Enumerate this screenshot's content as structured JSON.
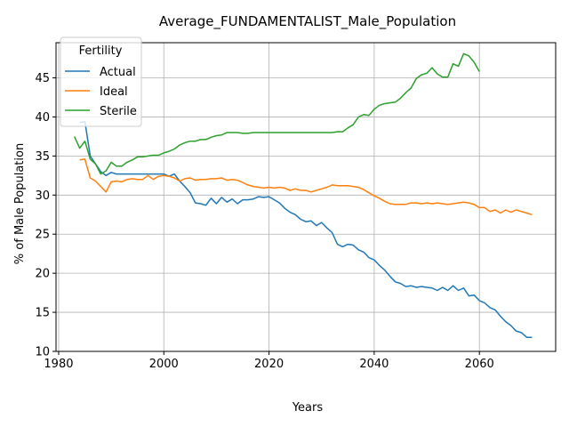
{
  "chart_data": {
    "type": "line",
    "title": "Average_FUNDAMENTALIST_Male_Population",
    "xlabel": "Years",
    "ylabel": "% of Male Population",
    "xlim": [
      1979.5,
      2074.5
    ],
    "ylim": [
      10,
      49.5
    ],
    "xticks": [
      1980,
      2000,
      2020,
      2040,
      2060
    ],
    "yticks": [
      10,
      15,
      20,
      25,
      30,
      35,
      40,
      45
    ],
    "grid": true,
    "legend": {
      "title": "Fertility",
      "position": "top-left"
    },
    "series": [
      {
        "name": "Actual",
        "color": "#1f77b4",
        "x": [
          1984,
          1985,
          1986,
          1987,
          1988,
          1989,
          1990,
          1991,
          1992,
          1993,
          1994,
          1995,
          1996,
          1997,
          1998,
          1999,
          2000,
          2001,
          2002,
          2003,
          2004,
          2005,
          2006,
          2007,
          2008,
          2009,
          2010,
          2011,
          2012,
          2013,
          2014,
          2015,
          2016,
          2017,
          2018,
          2019,
          2020,
          2021,
          2022,
          2023,
          2024,
          2025,
          2026,
          2027,
          2028,
          2029,
          2030,
          2031,
          2032,
          2033,
          2034,
          2035,
          2036,
          2037,
          2038,
          2039,
          2040,
          2041,
          2042,
          2043,
          2044,
          2045,
          2046,
          2047,
          2048,
          2049,
          2050,
          2051,
          2052,
          2053,
          2054,
          2055,
          2056,
          2057,
          2058,
          2059,
          2060,
          2061,
          2062,
          2063,
          2064,
          2065,
          2066,
          2067,
          2068,
          2069,
          2070
        ],
        "values": [
          39.3,
          39.4,
          35.0,
          34.0,
          33.0,
          32.5,
          32.9,
          32.7,
          32.7,
          32.7,
          32.7,
          32.7,
          32.7,
          32.7,
          32.7,
          32.7,
          32.7,
          32.4,
          32.7,
          31.8,
          31.1,
          30.3,
          29.0,
          28.9,
          28.7,
          29.6,
          28.9,
          29.7,
          29.1,
          29.5,
          28.9,
          29.4,
          29.4,
          29.5,
          29.8,
          29.7,
          29.8,
          29.4,
          29.0,
          28.3,
          27.8,
          27.5,
          26.9,
          26.6,
          26.7,
          26.1,
          26.5,
          25.8,
          25.2,
          23.7,
          23.4,
          23.7,
          23.6,
          23.0,
          22.7,
          22.0,
          21.7,
          21.0,
          20.4,
          19.6,
          18.9,
          18.7,
          18.3,
          18.4,
          18.2,
          18.3,
          18.2,
          18.1,
          17.8,
          18.2,
          17.8,
          18.4,
          17.8,
          18.1,
          17.1,
          17.2,
          16.5,
          16.2,
          15.6,
          15.3,
          14.5,
          13.8,
          13.3,
          12.6,
          12.4,
          11.8,
          11.8
        ]
      },
      {
        "name": "Ideal",
        "color": "#ff7f0e",
        "x": [
          1984,
          1985,
          1986,
          1987,
          1988,
          1989,
          1990,
          1991,
          1992,
          1993,
          1994,
          1995,
          1996,
          1997,
          1998,
          1999,
          2000,
          2001,
          2002,
          2003,
          2004,
          2005,
          2006,
          2007,
          2008,
          2009,
          2010,
          2011,
          2012,
          2013,
          2014,
          2015,
          2016,
          2017,
          2018,
          2019,
          2020,
          2021,
          2022,
          2023,
          2024,
          2025,
          2026,
          2027,
          2028,
          2029,
          2030,
          2031,
          2032,
          2033,
          2034,
          2035,
          2036,
          2037,
          2038,
          2039,
          2040,
          2041,
          2042,
          2043,
          2044,
          2045,
          2046,
          2047,
          2048,
          2049,
          2050,
          2051,
          2052,
          2053,
          2054,
          2055,
          2056,
          2057,
          2058,
          2059,
          2060,
          2061,
          2062,
          2063,
          2064,
          2065,
          2066,
          2067,
          2068,
          2069,
          2070
        ],
        "values": [
          34.5,
          34.6,
          32.2,
          31.8,
          31.1,
          30.4,
          31.7,
          31.8,
          31.7,
          32.0,
          32.1,
          32.0,
          32.0,
          32.5,
          32.0,
          32.4,
          32.5,
          32.4,
          32.2,
          31.8,
          32.1,
          32.2,
          31.9,
          32.0,
          32.0,
          32.1,
          32.1,
          32.2,
          31.9,
          32.0,
          31.9,
          31.6,
          31.3,
          31.1,
          31.0,
          30.9,
          31.0,
          30.9,
          31.0,
          30.9,
          30.6,
          30.8,
          30.6,
          30.6,
          30.4,
          30.6,
          30.8,
          31.0,
          31.3,
          31.2,
          31.2,
          31.2,
          31.1,
          31.0,
          30.7,
          30.3,
          29.9,
          29.6,
          29.2,
          28.9,
          28.8,
          28.8,
          28.8,
          29.0,
          29.0,
          28.9,
          29.0,
          28.9,
          29.0,
          28.9,
          28.8,
          28.9,
          29.0,
          29.1,
          29.0,
          28.8,
          28.4,
          28.4,
          27.9,
          28.1,
          27.7,
          28.1,
          27.8,
          28.1,
          27.9,
          27.7,
          27.5
        ]
      },
      {
        "name": "Sterile",
        "color": "#2ca02c",
        "x": [
          1983,
          1984,
          1985,
          1986,
          1987,
          1988,
          1989,
          1990,
          1991,
          1992,
          1993,
          1994,
          1995,
          1996,
          1997,
          1998,
          1999,
          2000,
          2001,
          2002,
          2003,
          2004,
          2005,
          2006,
          2007,
          2008,
          2009,
          2010,
          2011,
          2012,
          2013,
          2014,
          2015,
          2016,
          2017,
          2018,
          2019,
          2020,
          2021,
          2022,
          2023,
          2024,
          2025,
          2026,
          2027,
          2028,
          2029,
          2030,
          2031,
          2032,
          2033,
          2034,
          2035,
          2036,
          2037,
          2038,
          2039,
          2040,
          2041,
          2042,
          2043,
          2044,
          2045,
          2046,
          2047,
          2048,
          2049,
          2050,
          2051,
          2052,
          2053,
          2054,
          2055,
          2056,
          2057,
          2058,
          2059,
          2060
        ],
        "values": [
          37.5,
          36.0,
          36.9,
          34.6,
          34.0,
          32.7,
          33.1,
          34.2,
          33.7,
          33.7,
          34.2,
          34.5,
          34.9,
          34.9,
          35.0,
          35.1,
          35.1,
          35.4,
          35.6,
          35.9,
          36.4,
          36.7,
          36.9,
          36.9,
          37.1,
          37.1,
          37.4,
          37.6,
          37.7,
          38.0,
          38.0,
          38.0,
          37.9,
          37.9,
          38.0,
          38.0,
          38.0,
          38.0,
          38.0,
          38.0,
          38.0,
          38.0,
          38.0,
          38.0,
          38.0,
          38.0,
          38.0,
          38.0,
          38.0,
          38.0,
          38.1,
          38.1,
          38.6,
          39.0,
          40.0,
          40.3,
          40.2,
          41.0,
          41.5,
          41.7,
          41.8,
          41.9,
          42.4,
          43.1,
          43.7,
          44.9,
          45.4,
          45.6,
          46.3,
          45.5,
          45.1,
          45.1,
          46.8,
          46.5,
          48.1,
          47.8,
          47.0,
          45.8
        ]
      }
    ]
  }
}
